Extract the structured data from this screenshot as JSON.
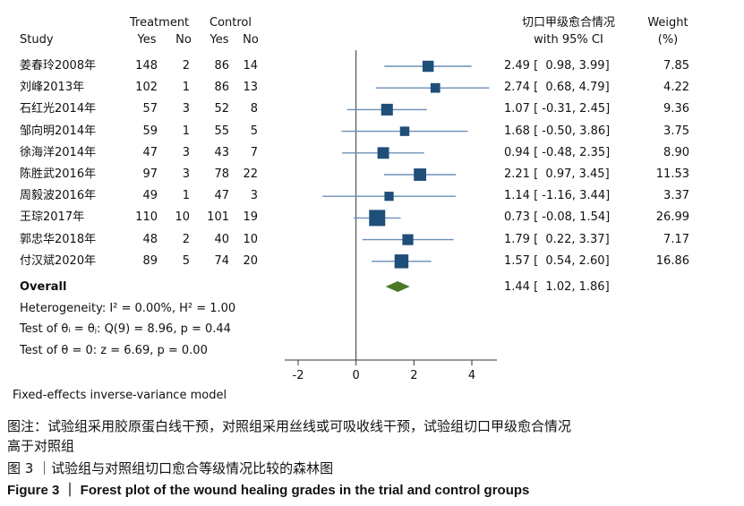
{
  "header": {
    "study": "Study",
    "treatment": "Treatment",
    "control": "Control",
    "yes_t": "Yes",
    "no_t": "No",
    "yes_c": "Yes",
    "no_c": "No",
    "effect_line1": "切口甲级愈合情况",
    "effect_line2": "with 95% CI",
    "weight_line1": "Weight",
    "weight_line2": "(%)"
  },
  "studies": [
    {
      "name": "姜春玲2008年",
      "t_yes": "148",
      "t_no": "2",
      "c_yes": "86",
      "c_no": "14",
      "ci_text": "2.49 [  0.98, 3.99]",
      "weight_text": "7.85"
    },
    {
      "name": "刘峰2013年",
      "t_yes": "102",
      "t_no": "1",
      "c_yes": "86",
      "c_no": "13",
      "ci_text": "2.74 [  0.68, 4.79]",
      "weight_text": "4.22"
    },
    {
      "name": "石红光2014年",
      "t_yes": "57",
      "t_no": "3",
      "c_yes": "52",
      "c_no": "8",
      "ci_text": "1.07 [ -0.31, 2.45]",
      "weight_text": "9.36"
    },
    {
      "name": "邹向明2014年",
      "t_yes": "59",
      "t_no": "1",
      "c_yes": "55",
      "c_no": "5",
      "ci_text": "1.68 [ -0.50, 3.86]",
      "weight_text": "3.75"
    },
    {
      "name": "徐海洋2014年",
      "t_yes": "47",
      "t_no": "3",
      "c_yes": "43",
      "c_no": "7",
      "ci_text": "0.94 [ -0.48, 2.35]",
      "weight_text": "8.90"
    },
    {
      "name": "陈胜武2016年",
      "t_yes": "97",
      "t_no": "3",
      "c_yes": "78",
      "c_no": "22",
      "ci_text": "2.21 [  0.97, 3.45]",
      "weight_text": "11.53"
    },
    {
      "name": "周毅波2016年",
      "t_yes": "49",
      "t_no": "1",
      "c_yes": "47",
      "c_no": "3",
      "ci_text": "1.14 [ -1.16, 3.44]",
      "weight_text": "3.37"
    },
    {
      "name": "王琮2017年",
      "t_yes": "110",
      "t_no": "10",
      "c_yes": "101",
      "c_no": "19",
      "ci_text": "0.73 [ -0.08, 1.54]",
      "weight_text": "26.99"
    },
    {
      "name": "郭忠华2018年",
      "t_yes": "48",
      "t_no": "2",
      "c_yes": "40",
      "c_no": "10",
      "ci_text": "1.79 [  0.22, 3.37]",
      "weight_text": "7.17"
    },
    {
      "name": "付汉斌2020年",
      "t_yes": "89",
      "t_no": "5",
      "c_yes": "74",
      "c_no": "20",
      "ci_text": "1.57 [  0.54, 2.60]",
      "weight_text": "16.86"
    }
  ],
  "overall": {
    "label": "Overall",
    "ci_text": "1.44 [  1.02, 1.86]"
  },
  "stats": {
    "heterogeneity": "Heterogeneity: I² = 0.00%, H² = 1.00",
    "test_equal": "Test of θᵢ = θⱼ: Q(9) = 8.96, p = 0.44",
    "test_zero": "Test of θ = 0: z = 6.69, p = 0.00",
    "model": "Fixed-effects inverse-variance model"
  },
  "caption": {
    "note_line1": "图注：试验组采用胶原蛋白线干预，对照组采用丝线或可吸收线干预，试验组切口甲级愈合情况",
    "note_line2": "高于对照组",
    "title_cn": "图 3 ｜试验组与对照组切口愈合等级情况比较的森林图",
    "title_en": "Figure 3 ｜ Forest plot of the wound healing grades in the trial and control groups"
  },
  "colors": {
    "marker": "#1f4e79",
    "ci_line": "#6b8fb5",
    "diamond": "#4a7a28",
    "axis": "#333333"
  },
  "chart_data": {
    "type": "forest",
    "xlim": [
      -2.3,
      4.6
    ],
    "xticks": [
      -2,
      0,
      2,
      4
    ],
    "null_line": 0,
    "points": [
      {
        "estimate": 2.49,
        "lower": 0.98,
        "upper": 3.99,
        "weight": 7.85
      },
      {
        "estimate": 2.74,
        "lower": 0.68,
        "upper": 4.79,
        "weight": 4.22
      },
      {
        "estimate": 1.07,
        "lower": -0.31,
        "upper": 2.45,
        "weight": 9.36
      },
      {
        "estimate": 1.68,
        "lower": -0.5,
        "upper": 3.86,
        "weight": 3.75
      },
      {
        "estimate": 0.94,
        "lower": -0.48,
        "upper": 2.35,
        "weight": 8.9
      },
      {
        "estimate": 2.21,
        "lower": 0.97,
        "upper": 3.45,
        "weight": 11.53
      },
      {
        "estimate": 1.14,
        "lower": -1.16,
        "upper": 3.44,
        "weight": 3.37
      },
      {
        "estimate": 0.73,
        "lower": -0.08,
        "upper": 1.54,
        "weight": 26.99
      },
      {
        "estimate": 1.79,
        "lower": 0.22,
        "upper": 3.37,
        "weight": 7.17
      },
      {
        "estimate": 1.57,
        "lower": 0.54,
        "upper": 2.6,
        "weight": 16.86
      }
    ],
    "overall": {
      "estimate": 1.44,
      "lower": 1.02,
      "upper": 1.86
    }
  }
}
